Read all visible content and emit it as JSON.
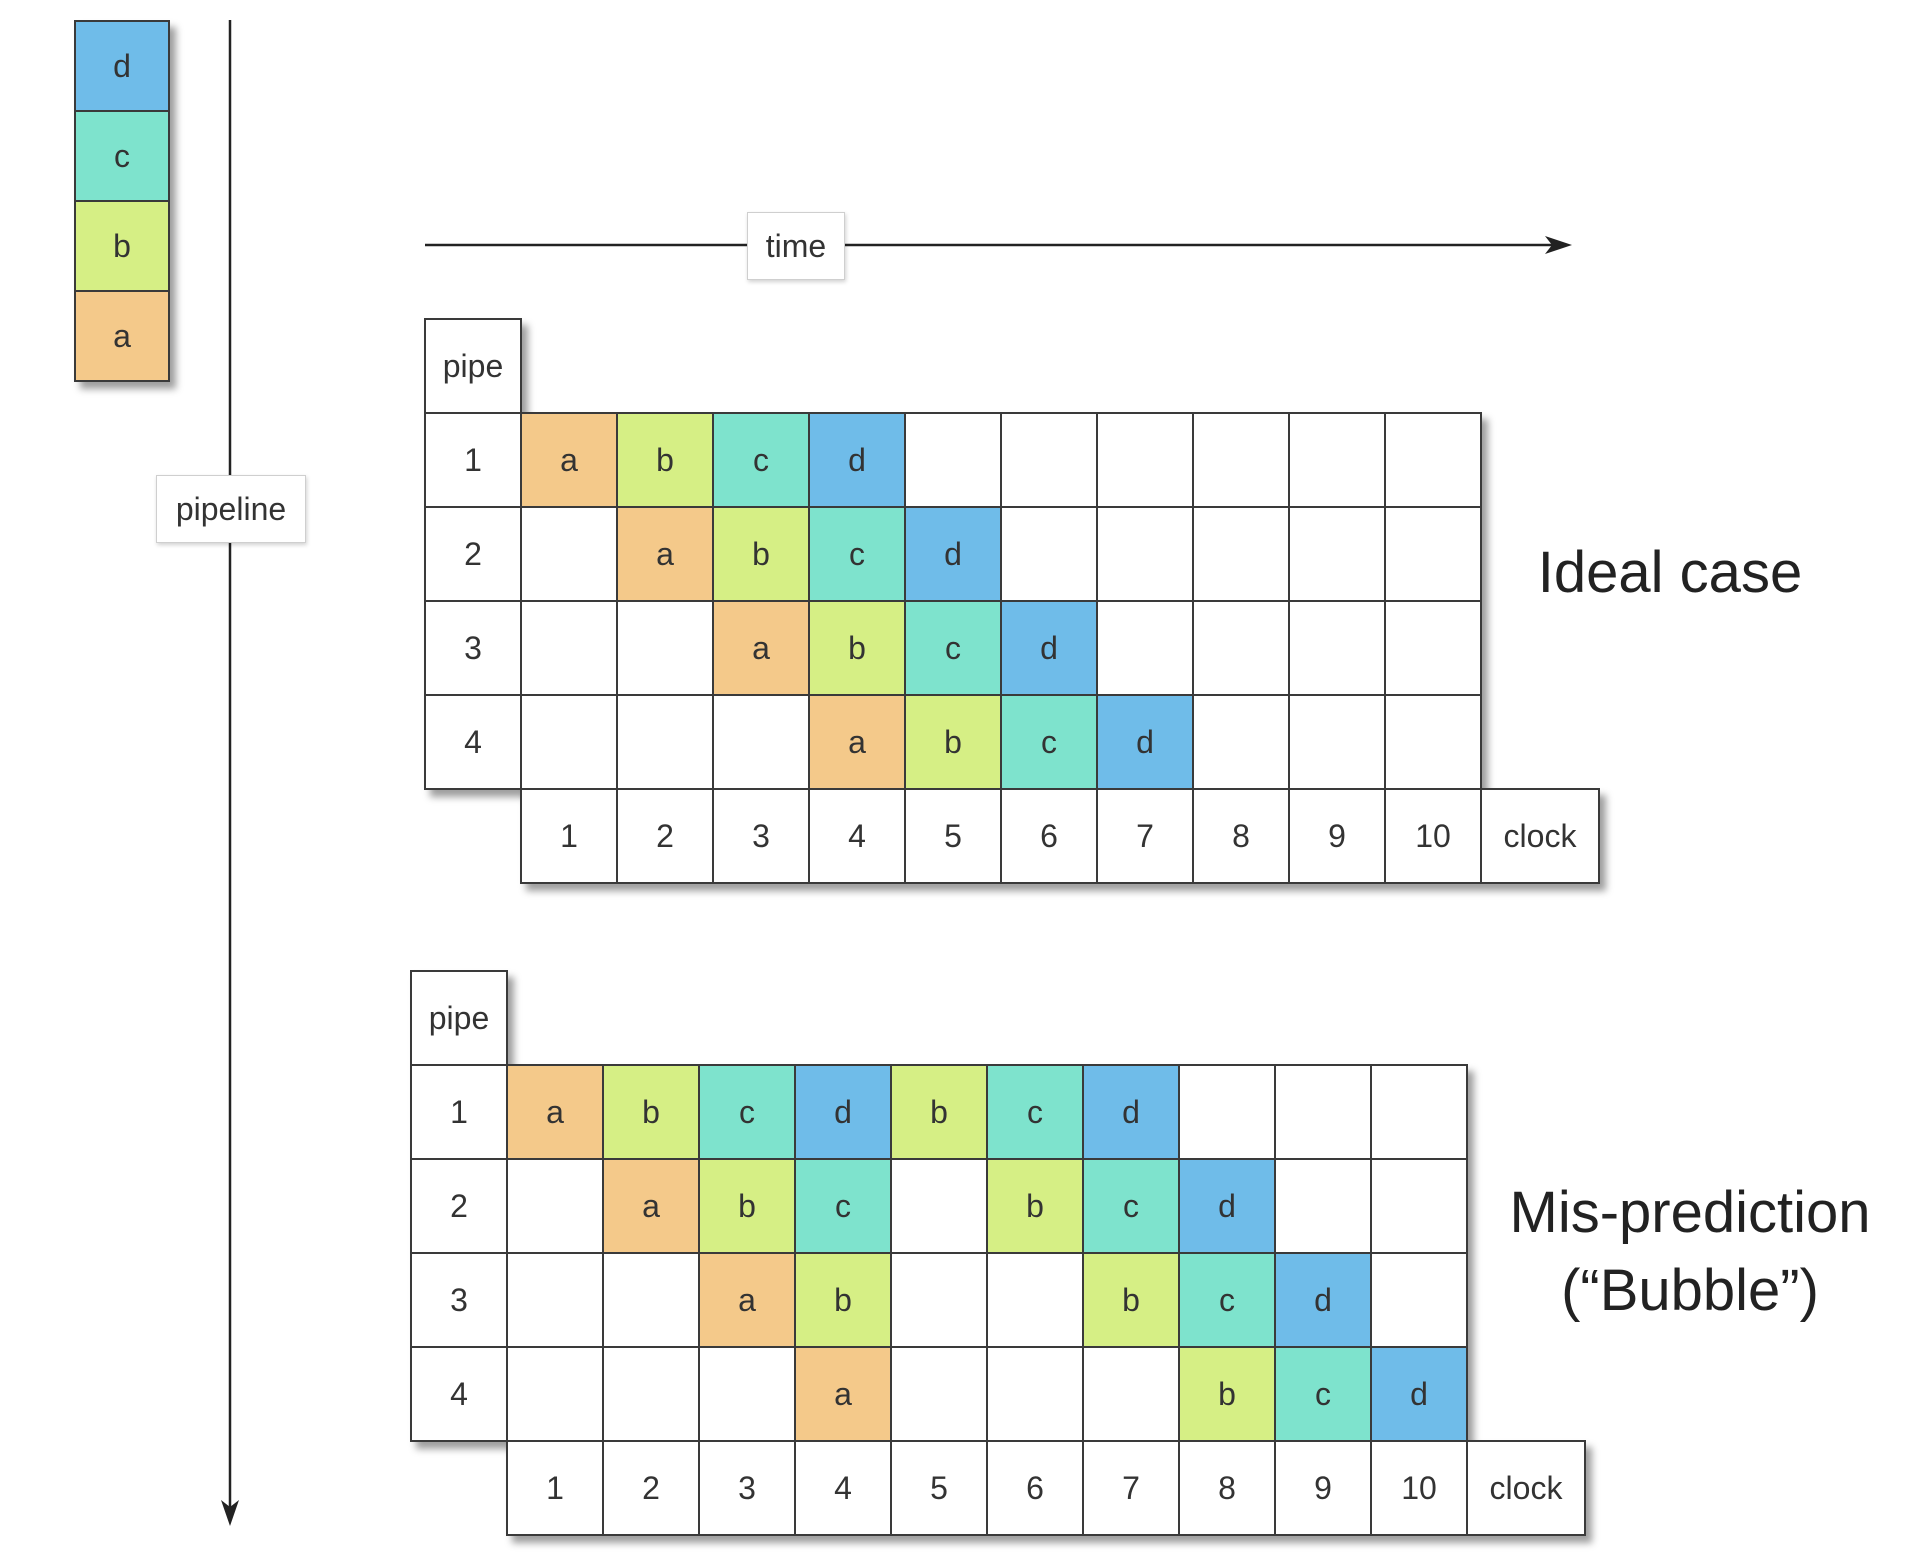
{
  "legend": {
    "stack": [
      {
        "letter": "d",
        "color": "#6fbce9"
      },
      {
        "letter": "c",
        "color": "#7ee3cd"
      },
      {
        "letter": "b",
        "color": "#d6ef85"
      },
      {
        "letter": "a",
        "color": "#f4c98a"
      }
    ]
  },
  "axes": {
    "pipeline_label": "pipeline",
    "time_label": "time"
  },
  "colors": {
    "a": "#f4c98a",
    "b": "#d6ef85",
    "c": "#7ee3cd",
    "d": "#6fbce9"
  },
  "tables": [
    {
      "id": "ideal",
      "pipe_header": "pipe",
      "clock_header": "clock",
      "rows": [
        "1",
        "2",
        "3",
        "4"
      ],
      "clocks": [
        "1",
        "2",
        "3",
        "4",
        "5",
        "6",
        "7",
        "8",
        "9",
        "10"
      ],
      "cells": [
        [
          "a",
          "b",
          "c",
          "d",
          "",
          "",
          "",
          "",
          "",
          ""
        ],
        [
          "",
          "a",
          "b",
          "c",
          "d",
          "",
          "",
          "",
          "",
          ""
        ],
        [
          "",
          "",
          "a",
          "b",
          "c",
          "d",
          "",
          "",
          "",
          ""
        ],
        [
          "",
          "",
          "",
          "a",
          "b",
          "c",
          "d",
          "",
          "",
          ""
        ]
      ],
      "caption_lines": [
        "Ideal case"
      ]
    },
    {
      "id": "misprediction",
      "pipe_header": "pipe",
      "clock_header": "clock",
      "rows": [
        "1",
        "2",
        "3",
        "4"
      ],
      "clocks": [
        "1",
        "2",
        "3",
        "4",
        "5",
        "6",
        "7",
        "8",
        "9",
        "10"
      ],
      "cells": [
        [
          "a",
          "b",
          "c",
          "d",
          "b",
          "c",
          "d",
          "",
          "",
          ""
        ],
        [
          "",
          "a",
          "b",
          "c",
          "",
          "b",
          "c",
          "d",
          "",
          ""
        ],
        [
          "",
          "",
          "a",
          "b",
          "",
          "",
          "b",
          "c",
          "d",
          ""
        ],
        [
          "",
          "",
          "",
          "a",
          "",
          "",
          "",
          "b",
          "c",
          "d"
        ]
      ],
      "caption_lines": [
        "Mis-prediction",
        "(“Bubble”)"
      ]
    }
  ]
}
